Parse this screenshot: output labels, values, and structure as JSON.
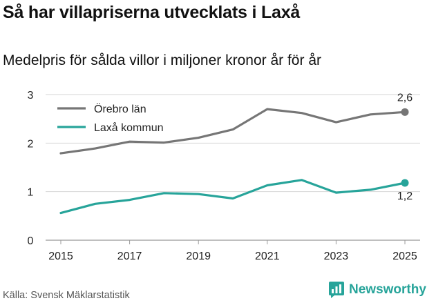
{
  "header": {
    "title": "Så har villapriserna utvecklats i Laxå",
    "subtitle": "Medelpris för sålda villor i miljoner kronor år för år"
  },
  "footer": {
    "source": "Källa: Svensk Mäklarstatistik",
    "brand": "Newsworthy"
  },
  "colors": {
    "orebro": "#767676",
    "laxa": "#27a49a",
    "grid": "#d6d6d6",
    "axis": "#999999"
  },
  "chart_data": {
    "type": "line",
    "title": "Så har villapriserna utvecklats i Laxå",
    "subtitle": "Medelpris för sålda villor i miljoner kronor år för år",
    "xlabel": "",
    "ylabel": "",
    "ylim": [
      0,
      3
    ],
    "yticks": [
      0,
      1,
      2,
      3
    ],
    "xticks": [
      2015,
      2017,
      2019,
      2021,
      2023,
      2025
    ],
    "x": [
      2015,
      2016,
      2017,
      2018,
      2019,
      2020,
      2021,
      2022,
      2023,
      2024,
      2025
    ],
    "grid": true,
    "legend_position": "top-left",
    "series": [
      {
        "name": "Örebro län",
        "color": "#767676",
        "values": [
          1.79,
          1.89,
          2.03,
          2.01,
          2.11,
          2.28,
          2.7,
          2.62,
          2.43,
          2.59,
          2.64
        ],
        "end_label": "2,6"
      },
      {
        "name": "Laxå kommun",
        "color": "#27a49a",
        "values": [
          0.56,
          0.75,
          0.83,
          0.97,
          0.95,
          0.86,
          1.13,
          1.24,
          0.98,
          1.04,
          1.18
        ],
        "end_label": "1,2"
      }
    ]
  }
}
